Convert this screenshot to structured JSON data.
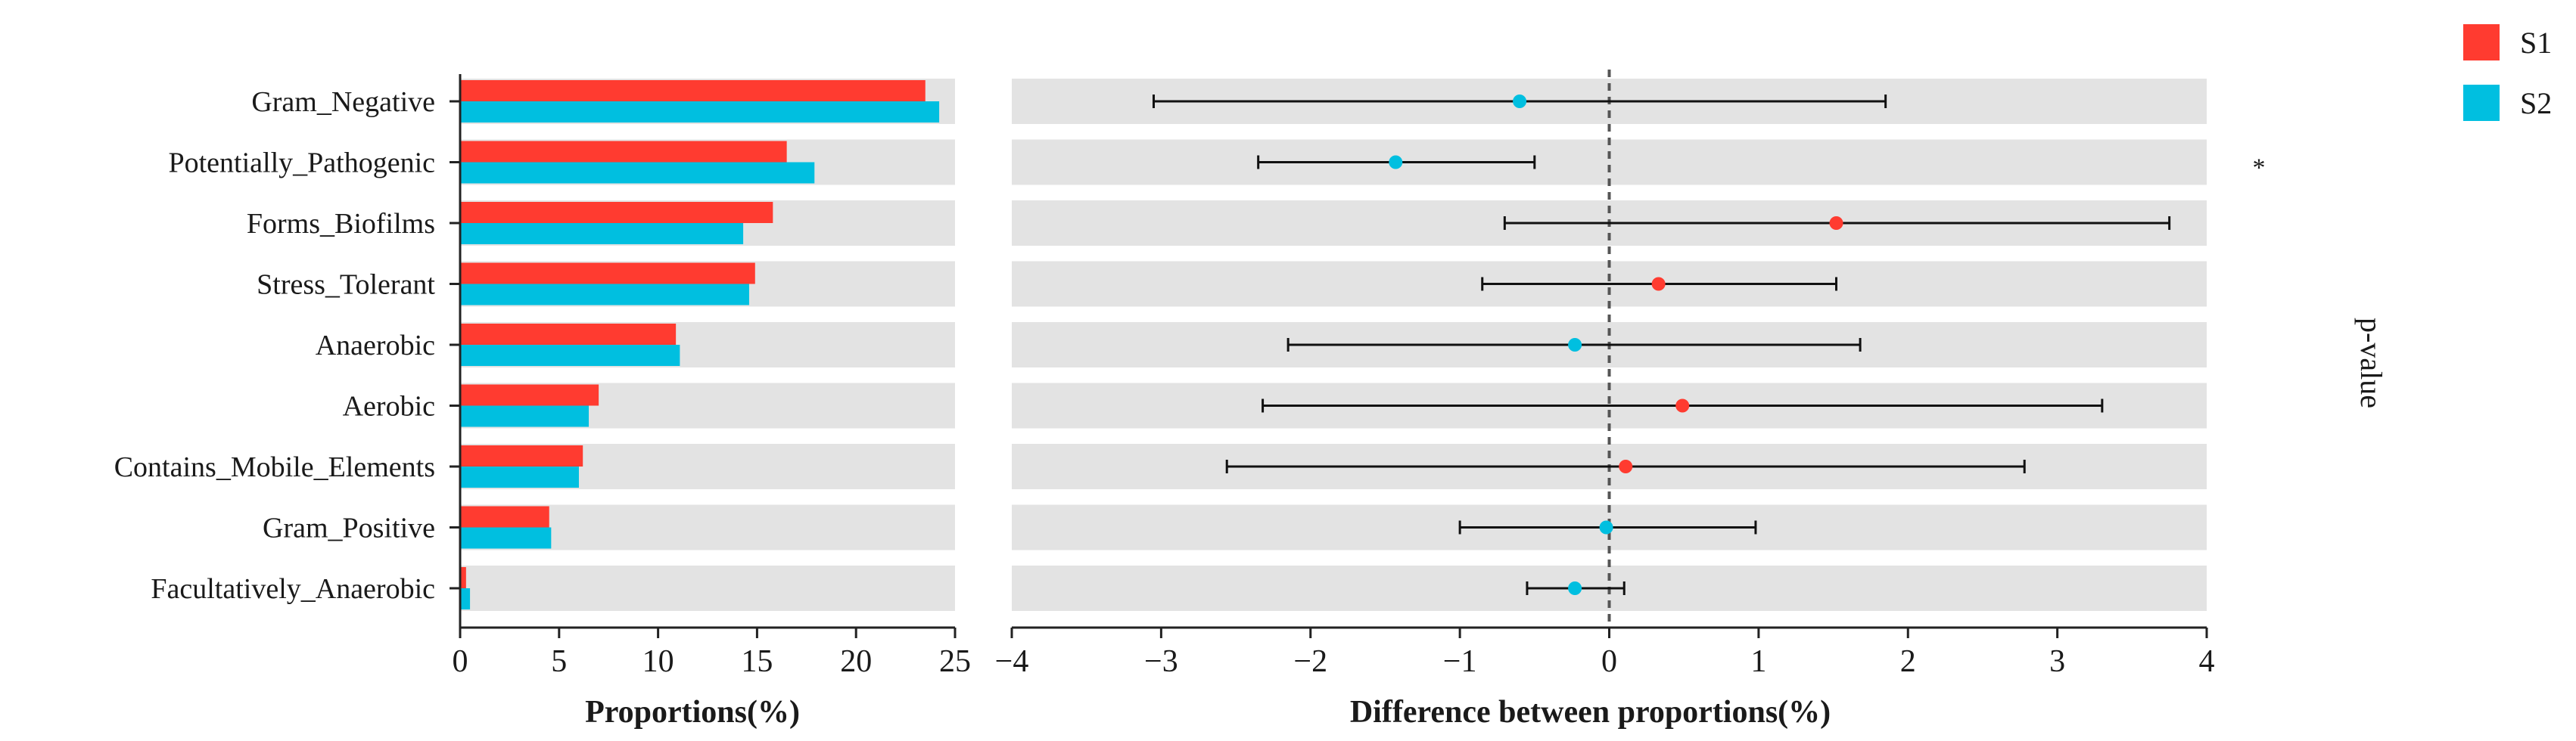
{
  "chart_data": [
    {
      "type": "bar",
      "orientation": "horizontal",
      "categories": [
        "Gram_Negative",
        "Potentially_Pathogenic",
        "Forms_Biofilms",
        "Stress_Tolerant",
        "Anaerobic",
        "Aerobic",
        "Contains_Mobile_Elements",
        "Gram_Positive",
        "Facultatively_Anaerobic"
      ],
      "series": [
        {
          "name": "S1",
          "color": "#ff3b30",
          "values": [
            23.5,
            16.5,
            15.8,
            14.9,
            10.9,
            7.0,
            6.2,
            4.5,
            0.3
          ]
        },
        {
          "name": "S2",
          "color": "#00bfe0",
          "values": [
            24.2,
            17.9,
            14.3,
            14.6,
            11.1,
            6.5,
            6.0,
            4.6,
            0.5
          ]
        }
      ],
      "xlabel": "Proportions(%)",
      "xlim": [
        0,
        25
      ],
      "xticks": [
        "0",
        "5",
        "10",
        "15",
        "20",
        "25"
      ]
    },
    {
      "type": "scatter",
      "subtype": "errorbar",
      "categories": [
        "Gram_Negative",
        "Potentially_Pathogenic",
        "Forms_Biofilms",
        "Stress_Tolerant",
        "Anaerobic",
        "Aerobic",
        "Contains_Mobile_Elements",
        "Gram_Positive",
        "Facultatively_Anaerobic"
      ],
      "points": [
        {
          "value": -0.6,
          "low": -3.05,
          "high": 1.85,
          "group": "S2"
        },
        {
          "value": -1.43,
          "low": -2.35,
          "high": -0.5,
          "group": "S2"
        },
        {
          "value": 1.52,
          "low": -0.7,
          "high": 3.75,
          "group": "S1"
        },
        {
          "value": 0.33,
          "low": -0.85,
          "high": 1.52,
          "group": "S1"
        },
        {
          "value": -0.23,
          "low": -2.15,
          "high": 1.68,
          "group": "S2"
        },
        {
          "value": 0.49,
          "low": -2.32,
          "high": 3.3,
          "group": "S1"
        },
        {
          "value": 0.11,
          "low": -2.56,
          "high": 2.78,
          "group": "S1"
        },
        {
          "value": -0.02,
          "low": -1.0,
          "high": 0.98,
          "group": "S2"
        },
        {
          "value": -0.23,
          "low": -0.55,
          "high": 0.1,
          "group": "S2"
        }
      ],
      "xlabel": "Difference between proportions(%)",
      "xlim": [
        -4,
        4
      ],
      "xticks": [
        "−4",
        "−3",
        "−2",
        "−1",
        "0",
        "1",
        "2",
        "3",
        "4"
      ],
      "reference_line": 0
    }
  ],
  "significance": [
    "",
    "*",
    "",
    "",
    "",
    "",
    "",
    "",
    ""
  ],
  "pvalue_label": "p-value",
  "legend": [
    {
      "name": "S1",
      "color": "#ff3b30"
    },
    {
      "name": "S2",
      "color": "#00bfe0"
    }
  ]
}
